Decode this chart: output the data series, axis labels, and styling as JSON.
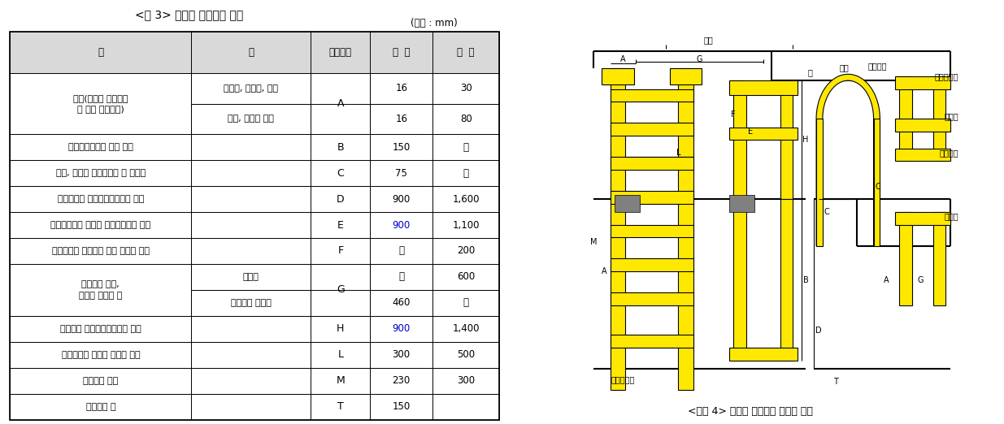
{
  "title": "<표 3> 난간과 손잡이의 치수",
  "unit_label": "(단위 : mm)",
  "fig_caption": "<그림 4> 난간과 손잡이의 모양과 치수",
  "header": [
    "구",
    "분",
    "그림기호",
    "최  소",
    "최  대"
  ],
  "rows": [
    {
      "col1": "지름(각재인 경우에는\n폭 또는 가로길이)",
      "col2": "사다리, 디딤대, 통로",
      "symbol": "A",
      "min": "16",
      "max": "30"
    },
    {
      "col1": "",
      "col2": "계단, 경사로 난간",
      "symbol": "",
      "min": "16",
      "max": "80"
    },
    {
      "col1": "손잡이지지부의 안쪽 거리",
      "col2": "",
      "symbol": "B",
      "min": "150",
      "max": "－"
    },
    {
      "col1": "난간, 손잡이 부착부분의 손 여유틈",
      "col2": "",
      "symbol": "C",
      "min": "75",
      "max": "－"
    },
    {
      "col1": "바닥면에서 난간시작부까지의 거리",
      "col2": "",
      "symbol": "D",
      "min": "900",
      "max": "1,600"
    },
    {
      "col1": "난간상부에서 플랫폼 바닥면까지의 거리",
      "col2": "",
      "symbol": "E",
      "min": "900",
      "max": "1,100",
      "min_blue": true
    },
    {
      "col1": "수직사다리 수직대와 난간 사이의 거리",
      "col2": "",
      "symbol": "F",
      "min": "－",
      "max": "200"
    },
    {
      "col1": "평행하는 난간,\n손잡이 사이의 폭",
      "col2": "사다리",
      "symbol": "G",
      "min": "－",
      "max": "600"
    },
    {
      "col1": "",
      "col2": "계단이나 경사로",
      "symbol": "",
      "min": "460",
      "max": "－"
    },
    {
      "col1": "바닥에서 상부난간대까지의 거리",
      "col2": "",
      "symbol": "H",
      "min": "900",
      "max": "1,400",
      "min_blue": true
    },
    {
      "col1": "수직사다리 수직대 사이의 거리",
      "col2": "",
      "symbol": "L",
      "min": "300",
      "max": "500"
    },
    {
      "col1": "디딤대간 거리",
      "col2": "",
      "symbol": "M",
      "min": "230",
      "max": "300"
    },
    {
      "col1": "발끝여유 틈",
      "col2": "",
      "symbol": "T",
      "min": "150",
      "max": ""
    }
  ],
  "table_bg_header": "#d9d9d9",
  "text_blue": "#0000cd",
  "text_black": "#000000",
  "yellow": "#FFE800",
  "gray": "#808080"
}
